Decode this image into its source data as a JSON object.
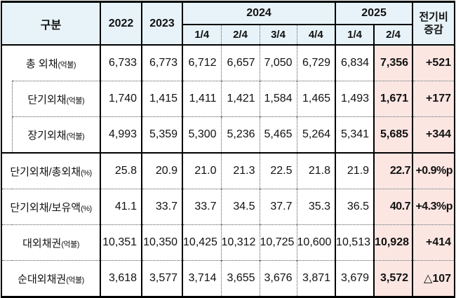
{
  "table": {
    "corner_label": "구분",
    "years": [
      "2022",
      "2023"
    ],
    "groups": [
      {
        "label": "2024",
        "quarters": [
          "1/4",
          "2/4",
          "3/4",
          "4/4"
        ]
      },
      {
        "label": "2025",
        "quarters": [
          "1/4",
          "2/4"
        ]
      }
    ],
    "change_header": {
      "line1": "전기비",
      "line2": "증감"
    },
    "rows": [
      {
        "label": "총 외채",
        "unit": "(억불)",
        "indent": false,
        "values": [
          "6,733",
          "6,773",
          "6,712",
          "6,657",
          "7,050",
          "6,729",
          "6,834",
          "7,356"
        ],
        "change": "+521"
      },
      {
        "label": "단기외채",
        "unit": "(억불)",
        "indent": true,
        "values": [
          "1,740",
          "1,415",
          "1,411",
          "1,421",
          "1,584",
          "1,465",
          "1,493",
          "1,671"
        ],
        "change": "+177"
      },
      {
        "label": "장기외채",
        "unit": "(억불)",
        "indent": true,
        "values": [
          "4,993",
          "5,359",
          "5,300",
          "5,236",
          "5,465",
          "5,264",
          "5,341",
          "5,685"
        ],
        "change": "+344"
      },
      {
        "label": "단기외채/총외채",
        "unit": "(%)",
        "indent": false,
        "values": [
          "25.8",
          "20.9",
          "21.0",
          "21.3",
          "22.5",
          "21.8",
          "21.9",
          "22.7"
        ],
        "change": "+0.9%p"
      },
      {
        "label": "단기외채/보유액",
        "unit": "(%)",
        "indent": false,
        "values": [
          "41.1",
          "33.7",
          "33.7",
          "34.5",
          "37.7",
          "35.3",
          "36.5",
          "40.7"
        ],
        "change": "+4.3%p"
      },
      {
        "label": "대외채권",
        "unit": "(억불)",
        "indent": false,
        "values": [
          "10,351",
          "10,350",
          "10,425",
          "10,312",
          "10,725",
          "10,600",
          "10,513",
          "10,928"
        ],
        "change": "+414"
      },
      {
        "label": "순대외채권",
        "unit": "(억불)",
        "indent": false,
        "values": [
          "3,618",
          "3,577",
          "3,714",
          "3,655",
          "3,676",
          "3,871",
          "3,679",
          "3,572"
        ],
        "change": "△107"
      }
    ],
    "colors": {
      "header_bg": "#E7F3F9",
      "highlight_bg": "#FBE6E2",
      "border": "#000000"
    }
  }
}
